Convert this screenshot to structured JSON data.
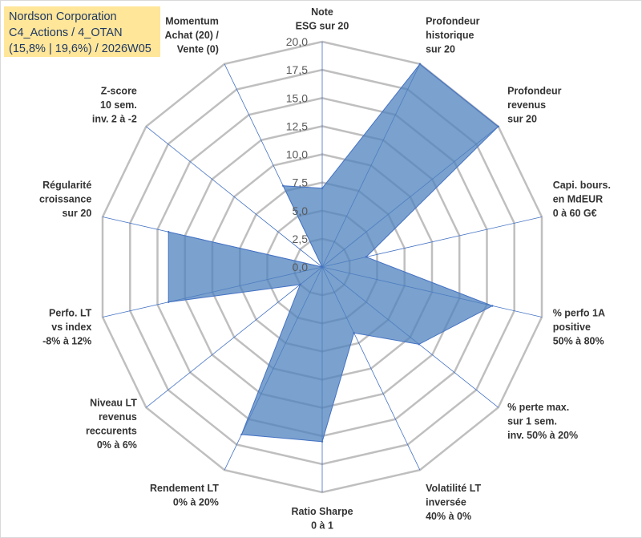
{
  "info": {
    "line1": "Nordson Corporation",
    "line2": "C4_Actions / 4_OTAN",
    "line3": "(15,8% | 19,6%) / 2026W05"
  },
  "chart_data": {
    "type": "radar",
    "axis_labels": [
      [
        "Note",
        "ESG sur 20"
      ],
      [
        "Profondeur",
        "historique",
        "sur 20"
      ],
      [
        "Profondeur",
        "revenus",
        "sur 20"
      ],
      [
        "Capi. bours.",
        "en MdEUR",
        "0 à 60 G€"
      ],
      [
        "% perfo 1A",
        "positive",
        "50% à 80%"
      ],
      [
        "% perte max.",
        "sur 1 sem.",
        "inv. 50% à 20%"
      ],
      [
        "Volatilité LT",
        "inversée",
        "40% à 0%"
      ],
      [
        "Ratio Sharpe",
        "0 à 1"
      ],
      [
        "Rendement LT",
        "0% à 20%"
      ],
      [
        "Niveau LT",
        "revenus",
        "reccurents",
        "0% à 6%"
      ],
      [
        "Perfo. LT",
        "vs index",
        "-8% à 12%"
      ],
      [
        "Régularité",
        "croissance",
        "sur 20"
      ],
      [
        "Z-score",
        "10 sem.",
        "inv. 2 à -2"
      ],
      [
        "Momentum",
        "Achat (20) /",
        "Vente (0)"
      ]
    ],
    "values": [
      7.0,
      20.0,
      20.0,
      4.0,
      15.5,
      11.0,
      6.5,
      15.5,
      16.5,
      2.5,
      14.0,
      14.0,
      0.0,
      8.0
    ],
    "ticks": [
      "0,0",
      "2,5",
      "5,0",
      "7,5",
      "10,0",
      "12,5",
      "15,0",
      "17,5",
      "20,0"
    ],
    "range": [
      0,
      20
    ],
    "grid_step": 2.5,
    "colors": {
      "fill": "#4f81bd",
      "fill_opacity": 0.75,
      "grid": "#bfbfbf",
      "spoke": "#4472c4"
    }
  }
}
